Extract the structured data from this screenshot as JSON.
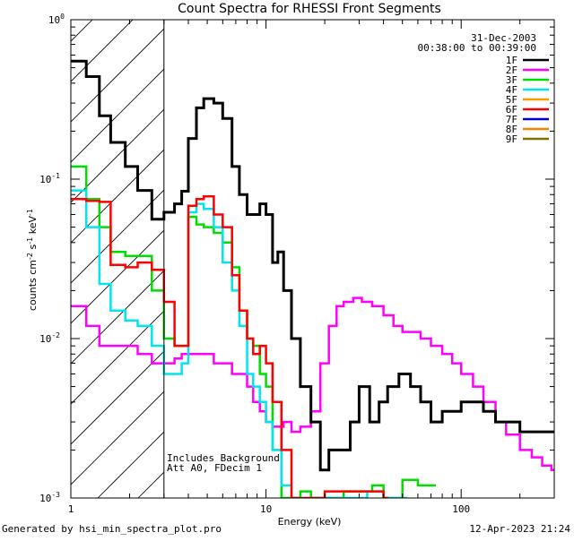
{
  "chart_data": {
    "type": "line",
    "title": "Count Spectra for RHESSI Front Segments",
    "xlabel": "Energy (keV)",
    "ylabel": "counts cm",
    "ylabel_sup1": "-2",
    "ylabel_mid": " s",
    "ylabel_sup2": "-1",
    "ylabel_end": " keV",
    "ylabel_sup3": "-1",
    "x_scale": "log",
    "y_scale": "log",
    "xlim": [
      1,
      300
    ],
    "ylim": [
      0.001,
      1
    ],
    "x_ticks": [
      {
        "value": 1,
        "label": "1"
      },
      {
        "value": 10,
        "label": "10"
      },
      {
        "value": 100,
        "label": "100"
      }
    ],
    "y_ticks": [
      {
        "value": 1,
        "base": "10",
        "exp": "0"
      },
      {
        "value": 0.1,
        "base": "10",
        "exp": "-1"
      },
      {
        "value": 0.01,
        "base": "10",
        "exp": "-2"
      },
      {
        "value": 0.001,
        "base": "10",
        "exp": "-3"
      }
    ],
    "date": "31-Dec-2003",
    "time_range": "00:38:00 to 00:39:00",
    "hatched_region_xmax": 3,
    "annotations": [
      "Includes Background",
      "Att A0, FDecim 1"
    ],
    "footer_left": "Generated by hsi_min_spectra_plot.pro",
    "footer_right": "12-Apr-2023 21:24",
    "legend_position": "top-right",
    "series": [
      {
        "name": "1F",
        "color": "#000000",
        "points": [
          [
            1,
            0.55
          ],
          [
            1.2,
            0.44
          ],
          [
            1.4,
            0.25
          ],
          [
            1.6,
            0.17
          ],
          [
            1.9,
            0.12
          ],
          [
            2.2,
            0.085
          ],
          [
            2.6,
            0.056
          ],
          [
            3,
            0.062
          ],
          [
            3.4,
            0.07
          ],
          [
            3.7,
            0.084
          ],
          [
            4.0,
            0.18
          ],
          [
            4.4,
            0.28
          ],
          [
            4.8,
            0.32
          ],
          [
            5.4,
            0.3
          ],
          [
            6.0,
            0.24
          ],
          [
            6.7,
            0.12
          ],
          [
            7.3,
            0.08
          ],
          [
            8.0,
            0.06
          ],
          [
            8.6,
            0.06
          ],
          [
            9.3,
            0.07
          ],
          [
            10,
            0.06
          ],
          [
            10.8,
            0.03
          ],
          [
            11.5,
            0.035
          ],
          [
            12.3,
            0.02
          ],
          [
            13.5,
            0.01
          ],
          [
            15,
            0.005
          ],
          [
            17,
            0.003
          ],
          [
            19,
            0.0015
          ],
          [
            21,
            0.002
          ],
          [
            24,
            0.002
          ],
          [
            27,
            0.003
          ],
          [
            30,
            0.005
          ],
          [
            34,
            0.003
          ],
          [
            38,
            0.004
          ],
          [
            42,
            0.005
          ],
          [
            48,
            0.006
          ],
          [
            55,
            0.005
          ],
          [
            62,
            0.004
          ],
          [
            70,
            0.003
          ],
          [
            80,
            0.0035
          ],
          [
            90,
            0.0035
          ],
          [
            100,
            0.004
          ],
          [
            115,
            0.004
          ],
          [
            130,
            0.0035
          ],
          [
            150,
            0.003
          ],
          [
            170,
            0.003
          ],
          [
            200,
            0.0026
          ],
          [
            230,
            0.0026
          ],
          [
            260,
            0.0026
          ],
          [
            290,
            0.0026
          ]
        ]
      },
      {
        "name": "2F",
        "color": "#ff00ff",
        "points": [
          [
            1,
            0.016
          ],
          [
            1.2,
            0.012
          ],
          [
            1.4,
            0.009
          ],
          [
            1.6,
            0.009
          ],
          [
            1.9,
            0.009
          ],
          [
            2.2,
            0.008
          ],
          [
            2.6,
            0.007
          ],
          [
            3,
            0.007
          ],
          [
            3.4,
            0.0075
          ],
          [
            3.7,
            0.008
          ],
          [
            4.0,
            0.008
          ],
          [
            4.4,
            0.008
          ],
          [
            4.8,
            0.008
          ],
          [
            5.4,
            0.007
          ],
          [
            6.0,
            0.007
          ],
          [
            6.7,
            0.006
          ],
          [
            7.3,
            0.006
          ],
          [
            8.0,
            0.005
          ],
          [
            8.6,
            0.004
          ],
          [
            9.3,
            0.0035
          ],
          [
            10,
            0.003
          ],
          [
            10.8,
            0.0028
          ],
          [
            11.5,
            0.0028
          ],
          [
            12.3,
            0.003
          ],
          [
            13.5,
            0.0026
          ],
          [
            15,
            0.0028
          ],
          [
            17,
            0.0035
          ],
          [
            19,
            0.007
          ],
          [
            21,
            0.012
          ],
          [
            23,
            0.016
          ],
          [
            25,
            0.017
          ],
          [
            28,
            0.018
          ],
          [
            31,
            0.017
          ],
          [
            35,
            0.016
          ],
          [
            40,
            0.014
          ],
          [
            45,
            0.012
          ],
          [
            50,
            0.011
          ],
          [
            56,
            0.011
          ],
          [
            62,
            0.01
          ],
          [
            70,
            0.009
          ],
          [
            80,
            0.008
          ],
          [
            90,
            0.007
          ],
          [
            100,
            0.006
          ],
          [
            115,
            0.005
          ],
          [
            130,
            0.004
          ],
          [
            150,
            0.003
          ],
          [
            170,
            0.0025
          ],
          [
            200,
            0.002
          ],
          [
            230,
            0.0018
          ],
          [
            260,
            0.0016
          ],
          [
            290,
            0.0015
          ]
        ]
      },
      {
        "name": "3F",
        "color": "#00dd00",
        "points": [
          [
            1,
            0.12
          ],
          [
            1.2,
            0.075
          ],
          [
            1.4,
            0.05
          ],
          [
            1.6,
            0.035
          ],
          [
            1.9,
            0.033
          ],
          [
            2.2,
            0.033
          ],
          [
            2.6,
            0.02
          ],
          [
            3,
            0.01
          ],
          [
            3.4,
            0.009
          ],
          [
            3.7,
            0.009
          ],
          [
            4.0,
            0.058
          ],
          [
            4.4,
            0.052
          ],
          [
            4.8,
            0.05
          ],
          [
            5.4,
            0.046
          ],
          [
            6.0,
            0.04
          ],
          [
            6.7,
            0.028
          ],
          [
            7.3,
            0.015
          ],
          [
            8.0,
            0.01
          ],
          [
            8.6,
            0.009
          ],
          [
            9.3,
            0.006
          ],
          [
            10,
            0.005
          ],
          [
            10.8,
            0.002
          ],
          [
            12,
            0.001
          ],
          [
            13.5,
            0.001
          ],
          [
            15,
            0.0011
          ],
          [
            17,
            0.001
          ],
          [
            20,
            0.001
          ],
          [
            25,
            0.0011
          ],
          [
            30,
            0.0011
          ],
          [
            35,
            0.0012
          ],
          [
            40,
            0.001
          ],
          [
            50,
            0.0013
          ],
          [
            60,
            0.0012
          ],
          [
            70,
            0.0012
          ]
        ]
      },
      {
        "name": "4F",
        "color": "#00e5ee",
        "points": [
          [
            1,
            0.085
          ],
          [
            1.2,
            0.05
          ],
          [
            1.4,
            0.022
          ],
          [
            1.6,
            0.015
          ],
          [
            1.9,
            0.013
          ],
          [
            2.2,
            0.012
          ],
          [
            2.6,
            0.009
          ],
          [
            3,
            0.006
          ],
          [
            3.4,
            0.006
          ],
          [
            3.7,
            0.007
          ],
          [
            4.0,
            0.062
          ],
          [
            4.4,
            0.07
          ],
          [
            4.8,
            0.065
          ],
          [
            5.4,
            0.05
          ],
          [
            6.0,
            0.03
          ],
          [
            6.7,
            0.02
          ],
          [
            7.3,
            0.012
          ],
          [
            8.0,
            0.006
          ],
          [
            8.6,
            0.005
          ],
          [
            9.3,
            0.004
          ],
          [
            10,
            0.003
          ],
          [
            10.8,
            0.002
          ],
          [
            12,
            0.0012
          ],
          [
            13.5,
            0.001
          ],
          [
            15,
            0.001
          ],
          [
            18,
            0.001
          ],
          [
            22,
            0.001
          ],
          [
            27,
            0.001
          ],
          [
            33,
            0.0011
          ],
          [
            40,
            0.001
          ],
          [
            50,
            0.001
          ]
        ]
      },
      {
        "name": "5F",
        "color": "#ff9900",
        "points": []
      },
      {
        "name": "6F",
        "color": "#ff0000",
        "points": [
          [
            1,
            0.075
          ],
          [
            1.2,
            0.073
          ],
          [
            1.4,
            0.072
          ],
          [
            1.6,
            0.029
          ],
          [
            1.9,
            0.028
          ],
          [
            2.2,
            0.03
          ],
          [
            2.6,
            0.027
          ],
          [
            3,
            0.017
          ],
          [
            3.4,
            0.009
          ],
          [
            3.7,
            0.009
          ],
          [
            4.0,
            0.068
          ],
          [
            4.4,
            0.075
          ],
          [
            4.8,
            0.078
          ],
          [
            5.4,
            0.06
          ],
          [
            6.0,
            0.05
          ],
          [
            6.7,
            0.025
          ],
          [
            7.3,
            0.015
          ],
          [
            8.0,
            0.01
          ],
          [
            8.6,
            0.008
          ],
          [
            9.3,
            0.009
          ],
          [
            10,
            0.007
          ],
          [
            10.8,
            0.004
          ],
          [
            12,
            0.002
          ],
          [
            13.5,
            0.001
          ],
          [
            15,
            0.001
          ],
          [
            20,
            0.0011
          ],
          [
            30,
            0.0011
          ],
          [
            40,
            0.001
          ]
        ]
      },
      {
        "name": "7F",
        "color": "#0000cc",
        "points": []
      },
      {
        "name": "8F",
        "color": "#ff7f00",
        "points": []
      },
      {
        "name": "9F",
        "color": "#807000",
        "points": []
      }
    ]
  }
}
